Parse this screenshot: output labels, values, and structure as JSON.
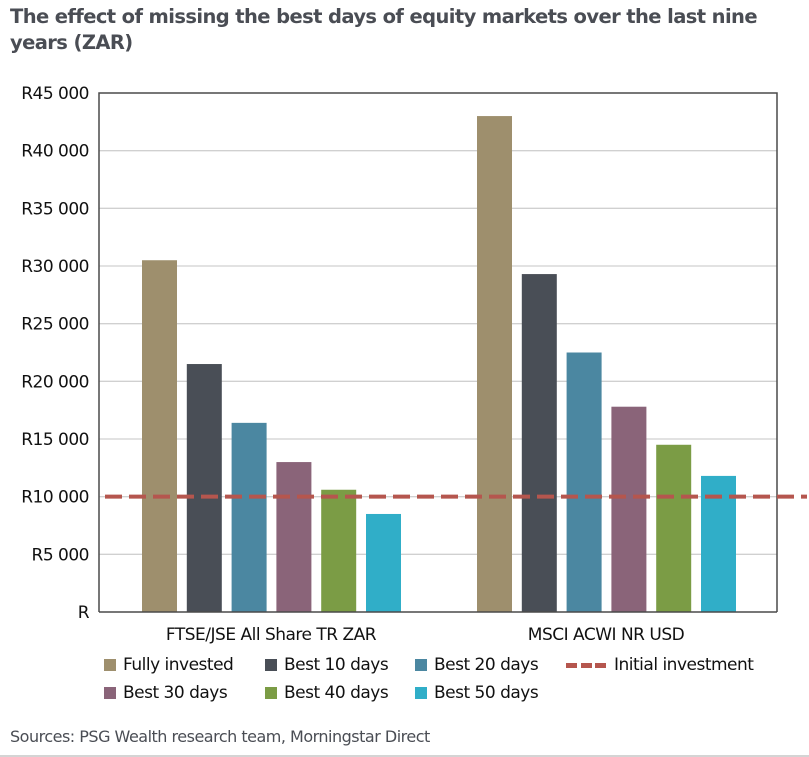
{
  "chart_data": {
    "type": "bar",
    "title": "The effect of missing the best days of equity markets over the last nine years (ZAR)",
    "xlabel": "",
    "ylabel": "",
    "ylim": [
      0,
      45000
    ],
    "grid": true,
    "y_ticks": [
      {
        "value": 0,
        "label": "R"
      },
      {
        "value": 5000,
        "label": "R5 000"
      },
      {
        "value": 10000,
        "label": "R10 000"
      },
      {
        "value": 15000,
        "label": "R15 000"
      },
      {
        "value": 20000,
        "label": "R20 000"
      },
      {
        "value": 25000,
        "label": "R25 000"
      },
      {
        "value": 30000,
        "label": "R30 000"
      },
      {
        "value": 35000,
        "label": "R35 000"
      },
      {
        "value": 40000,
        "label": "R40 000"
      },
      {
        "value": 45000,
        "label": "R45 000"
      }
    ],
    "categories": [
      "FTSE/JSE All Share TR ZAR",
      "MSCI ACWI NR USD"
    ],
    "series": [
      {
        "name": "Fully invested",
        "color": "#9e8f6d",
        "values": [
          30500,
          43000
        ]
      },
      {
        "name": "Best 10 days",
        "color": "#494e56",
        "values": [
          21500,
          29300
        ]
      },
      {
        "name": "Best 20 days",
        "color": "#4b87a1",
        "values": [
          16400,
          22500
        ]
      },
      {
        "name": "Best 30 days",
        "color": "#8a6479",
        "values": [
          13000,
          17800
        ]
      },
      {
        "name": "Best 40 days",
        "color": "#7b9c45",
        "values": [
          10600,
          14500
        ]
      },
      {
        "name": "Best 50 days",
        "color": "#30aec8",
        "values": [
          8500,
          11800
        ]
      }
    ],
    "reference_line": {
      "name": "Initial investment",
      "value": 10000,
      "color": "#b5564e",
      "style": "dashed"
    },
    "legend_position": "bottom",
    "source": "Sources: PSG Wealth research team, Morningstar Direct"
  },
  "colors": {
    "title": "#4a4d54",
    "grid": "#d0d0d0",
    "axis": "#4a4a4a"
  }
}
